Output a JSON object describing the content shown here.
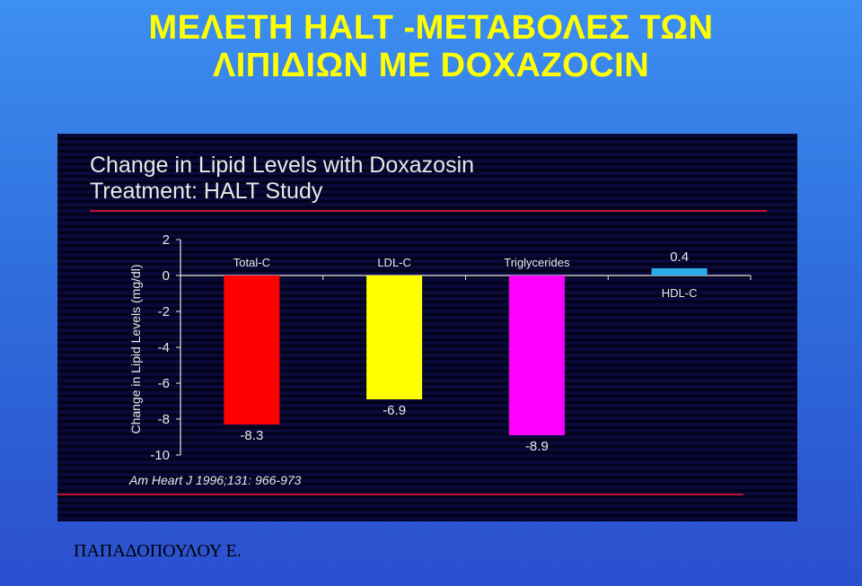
{
  "slide": {
    "title_line1": "ΜΕΛΕΤΗ  HALT -ΜΕΤΑΒΟΛΕΣ ΤΩΝ",
    "title_line2": "ΛΙΠΙΔΙΩΝ ΜΕ DOXAZOCIN",
    "author": "ΠΑΠΑΔΟΠΟΥΛΟΥ Ε.",
    "title_color": "#ffff00"
  },
  "chart_data": {
    "type": "bar",
    "title": "Change in Lipid Levels with Doxazosin",
    "subtitle": "Treatment: HALT Study",
    "ylabel": "Change in Lipid Levels (mg/dl)",
    "xlabel": "",
    "ylim": [
      -10,
      2
    ],
    "yticks": [
      2,
      0,
      -2,
      -4,
      -6,
      -8,
      -10
    ],
    "categories": [
      "Total-C",
      "LDL-C",
      "Triglycerides",
      "HDL-C"
    ],
    "values": [
      -8.3,
      -6.9,
      -8.9,
      0.4
    ],
    "value_labels": [
      "-8.3",
      "-6.9",
      "-8.9",
      "0.4"
    ],
    "colors": [
      "#ff0000",
      "#ffff00",
      "#ff00ff",
      "#29aee8"
    ],
    "source": "Am Heart J 1996;131: 966-973",
    "grid": false,
    "legend": "none"
  }
}
